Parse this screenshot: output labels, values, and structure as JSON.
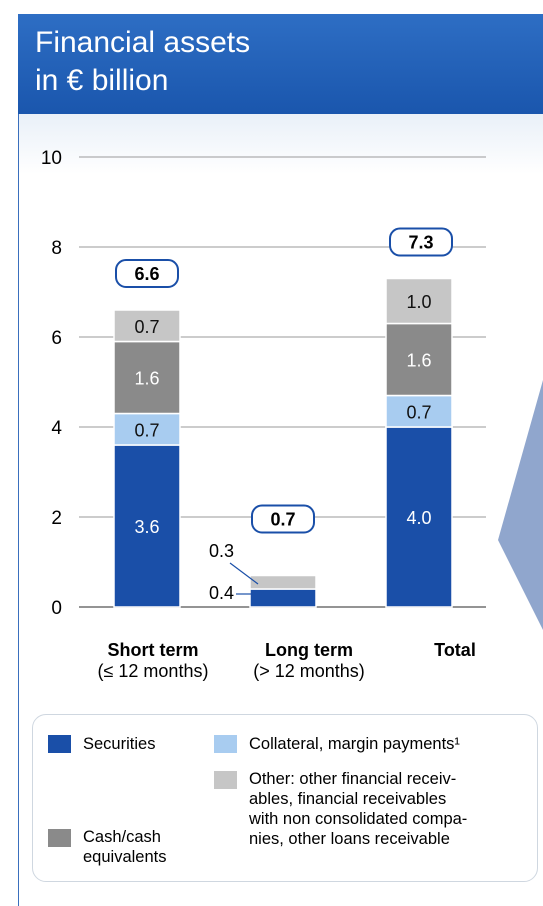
{
  "header": {
    "title_line1": "Financial assets",
    "title_line2": "in € billion"
  },
  "chart_data": {
    "type": "bar",
    "stacked": true,
    "categories": [
      "Short term",
      "Long term",
      "Total"
    ],
    "category_sublabels": [
      "(≤ 12 months)",
      "(> 12 months)",
      ""
    ],
    "ylim": [
      0,
      10
    ],
    "yticks": [
      "0",
      "2",
      "4",
      "6",
      "8",
      "10"
    ],
    "grid": true,
    "series": [
      {
        "name": "Securities",
        "values": [
          3.6,
          0.4,
          4.0
        ],
        "labels": [
          "3.6",
          "0.4",
          "4.0"
        ],
        "color": "#1a4fa8"
      },
      {
        "name": "Collateral, margin payments¹",
        "values": [
          0.7,
          0.0,
          0.7
        ],
        "labels": [
          "0.7",
          "",
          "0.7"
        ],
        "color": "#a8ccf0"
      },
      {
        "name": "Cash/cash equivalents",
        "values": [
          1.6,
          0.0,
          1.6
        ],
        "labels": [
          "1.6",
          "",
          "1.6"
        ],
        "color": "#8a8a8a"
      },
      {
        "name": "Other: other financial receivables, financial receivables with non consolidated companies, other loans receivable",
        "values": [
          0.7,
          0.3,
          1.0
        ],
        "labels": [
          "0.7",
          "0.3",
          "1.0"
        ],
        "color": "#c6c6c6"
      }
    ],
    "totals": [
      "6.6",
      "0.7",
      "7.3"
    ]
  },
  "legend": {
    "securities": "Securities",
    "collateral": "Collateral, margin payments¹",
    "other_l1": "Other: other financial receiv-",
    "other_l2": "ables, financial receivables",
    "other_l3": "with non consolidated compa-",
    "other_l4": "nies, other loans receivable",
    "cash_l1": "Cash/cash",
    "cash_l2": "equivalents"
  },
  "colors": {
    "header": "#1f5fb7",
    "securities": "#1a4fa8",
    "collateral": "#a8ccf0",
    "cash": "#8a8a8a",
    "other": "#c6c6c6"
  }
}
